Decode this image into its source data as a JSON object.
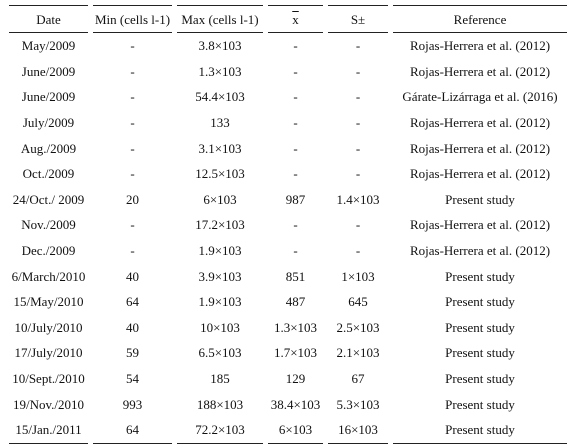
{
  "table": {
    "headers": [
      "Date",
      "Min (cells l-1)",
      "Max (cells l-1)",
      "x",
      "S±",
      "Reference"
    ],
    "rows": [
      [
        "May/2009",
        "-",
        "3.8×103",
        "-",
        "-",
        "Rojas-Herrera et al. (2012)"
      ],
      [
        "June/2009",
        "-",
        "1.3×103",
        "-",
        "-",
        "Rojas-Herrera et al. (2012)"
      ],
      [
        "June/2009",
        "-",
        "54.4×103",
        "-",
        "-",
        "Gárate-Lizárraga et al. (2016)"
      ],
      [
        "July/2009",
        "-",
        "133",
        "-",
        "-",
        "Rojas-Herrera et al. (2012)"
      ],
      [
        "Aug./2009",
        "-",
        "3.1×103",
        "-",
        "-",
        "Rojas-Herrera et al. (2012)"
      ],
      [
        "Oct./2009",
        "-",
        "12.5×103",
        "-",
        "-",
        "Rojas-Herrera et al. (2012)"
      ],
      [
        "24/Oct./ 2009",
        "20",
        "6×103",
        "987",
        "1.4×103",
        "Present study"
      ],
      [
        "Nov./2009",
        "-",
        "17.2×103",
        "-",
        "-",
        "Rojas-Herrera et al. (2012)"
      ],
      [
        "Dec./2009",
        "-",
        "1.9×103",
        "-",
        "-",
        "Rojas-Herrera et al. (2012)"
      ],
      [
        "6/March/2010",
        "40",
        "3.9×103",
        "851",
        "1×103",
        "Present study"
      ],
      [
        "15/May/2010",
        "64",
        "1.9×103",
        "487",
        "645",
        "Present study"
      ],
      [
        "10/July/2010",
        "40",
        "10×103",
        "1.3×103",
        "2.5×103",
        "Present study"
      ],
      [
        "17/July/2010",
        "59",
        "6.5×103",
        "1.7×103",
        "2.1×103",
        "Present study"
      ],
      [
        "10/Sept./2010",
        "54",
        "185",
        "129",
        "67",
        "Present study"
      ],
      [
        "19/Nov./2010",
        "993",
        "188×103",
        "38.4×103",
        "5.3×103",
        "Present study"
      ],
      [
        "15/Jan./2011",
        "64",
        "72.2×103",
        "6×103",
        "16×103",
        "Present study"
      ]
    ]
  }
}
